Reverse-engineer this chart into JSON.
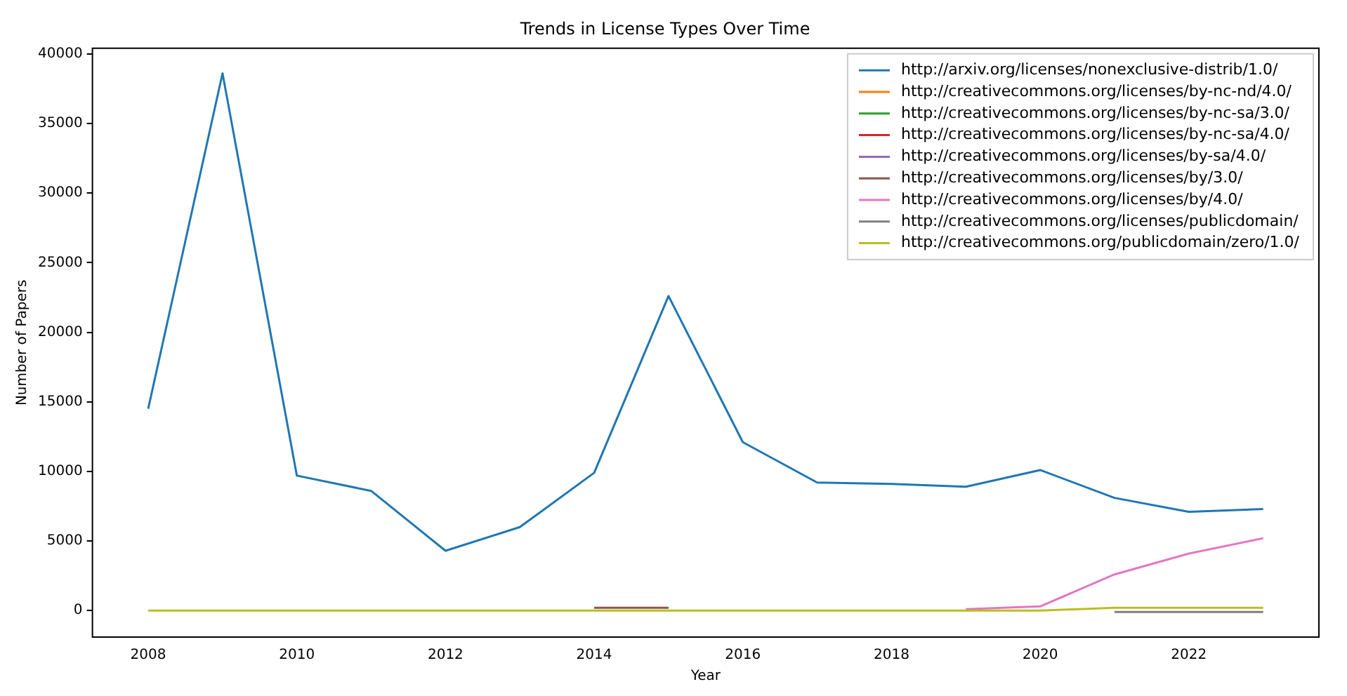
{
  "chart_data": {
    "type": "line",
    "title": "Trends in License Types Over Time",
    "xlabel": "Year",
    "ylabel": "Number of Papers",
    "x": [
      2008,
      2009,
      2010,
      2011,
      2012,
      2013,
      2014,
      2015,
      2016,
      2017,
      2018,
      2019,
      2020,
      2021,
      2022,
      2023
    ],
    "xlim": [
      2007.25,
      2023.75
    ],
    "xticks": [
      2008,
      2010,
      2012,
      2014,
      2016,
      2018,
      2020,
      2022
    ],
    "ylim": [
      -1900,
      40400
    ],
    "yticks": [
      0,
      5000,
      10000,
      15000,
      20000,
      25000,
      30000,
      35000,
      40000
    ],
    "legend": "top right",
    "grid": false,
    "series": [
      {
        "name": "http://arxiv.org/licenses/nonexclusive-distrib/1.0/",
        "color": "#1f77b4",
        "values": [
          14500,
          38600,
          9700,
          8600,
          4300,
          6000,
          9900,
          22600,
          12100,
          9200,
          9100,
          8900,
          10100,
          8100,
          7100,
          7300
        ]
      },
      {
        "name": "http://creativecommons.org/licenses/by-nc-nd/4.0/",
        "color": "#ff7f0e",
        "values": [
          null,
          null,
          null,
          null,
          null,
          null,
          null,
          null,
          null,
          null,
          null,
          null,
          null,
          null,
          null,
          null
        ]
      },
      {
        "name": "http://creativecommons.org/licenses/by-nc-sa/3.0/",
        "color": "#2ca02c",
        "values": [
          null,
          null,
          null,
          null,
          null,
          null,
          null,
          null,
          null,
          null,
          null,
          null,
          null,
          null,
          null,
          null
        ]
      },
      {
        "name": "http://creativecommons.org/licenses/by-nc-sa/4.0/",
        "color": "#d62728",
        "values": [
          null,
          null,
          null,
          null,
          null,
          null,
          null,
          null,
          null,
          null,
          null,
          null,
          null,
          null,
          null,
          null
        ]
      },
      {
        "name": "http://creativecommons.org/licenses/by-sa/4.0/",
        "color": "#9467bd",
        "values": [
          null,
          null,
          null,
          null,
          null,
          null,
          null,
          null,
          null,
          null,
          null,
          null,
          null,
          null,
          null,
          null
        ]
      },
      {
        "name": "http://creativecommons.org/licenses/by/3.0/",
        "color": "#8c564b",
        "values": [
          null,
          null,
          null,
          null,
          null,
          null,
          200,
          200,
          null,
          null,
          null,
          null,
          null,
          null,
          null,
          null
        ]
      },
      {
        "name": "http://creativecommons.org/licenses/by/4.0/",
        "color": "#e377c2",
        "values": [
          null,
          null,
          null,
          null,
          null,
          null,
          null,
          null,
          null,
          null,
          null,
          100,
          300,
          2600,
          4100,
          5200
        ]
      },
      {
        "name": "http://creativecommons.org/licenses/publicdomain/",
        "color": "#7f7f7f",
        "values": [
          null,
          null,
          null,
          null,
          null,
          null,
          null,
          null,
          null,
          null,
          null,
          null,
          null,
          -100,
          -100,
          -100
        ]
      },
      {
        "name": "http://creativecommons.org/publicdomain/zero/1.0/",
        "color": "#bcbd22",
        "values": [
          0,
          0,
          0,
          0,
          0,
          0,
          0,
          0,
          0,
          0,
          0,
          0,
          0,
          200,
          200,
          200
        ]
      }
    ]
  }
}
